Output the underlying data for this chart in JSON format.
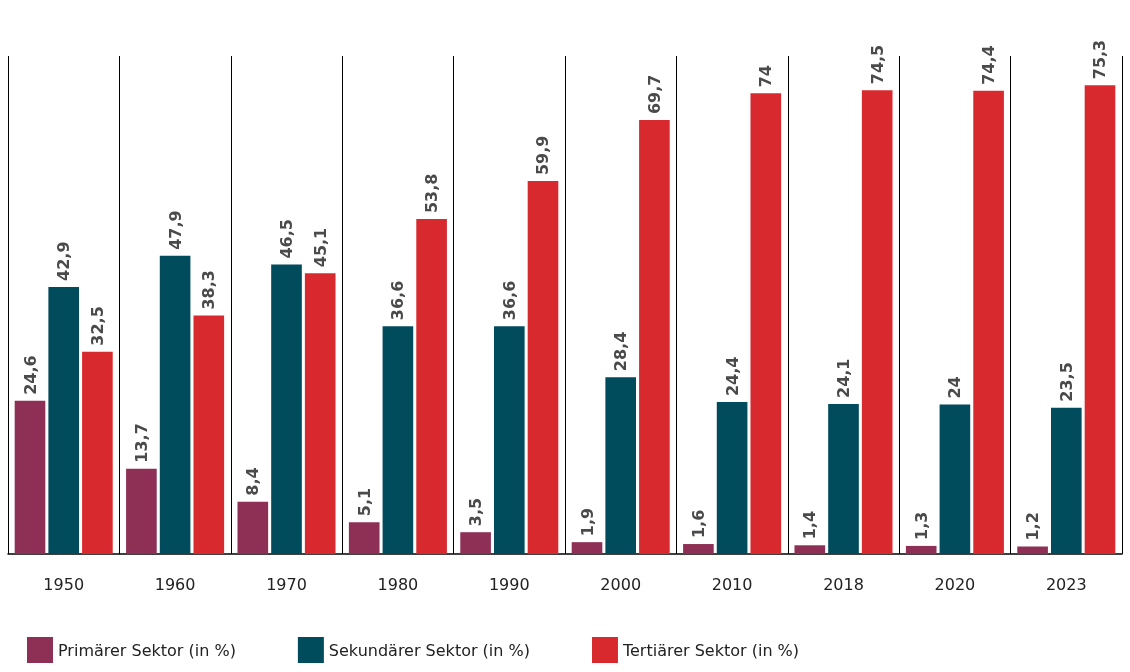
{
  "chart_data": {
    "type": "bar",
    "categories": [
      "1950",
      "1960",
      "1970",
      "1980",
      "1990",
      "2000",
      "2010",
      "2018",
      "2020",
      "2023"
    ],
    "series": [
      {
        "name": "Primärer Sektor (in %)",
        "color": "#8e2f55",
        "values": [
          24.6,
          13.7,
          8.4,
          5.1,
          3.5,
          1.9,
          1.6,
          1.4,
          1.3,
          1.2
        ],
        "value_labels": [
          "24,6",
          "13,7",
          "8,4",
          "5,1",
          "3,5",
          "1,9",
          "1,6",
          "1,4",
          "1,3",
          "1,2"
        ]
      },
      {
        "name": "Sekundärer Sektor (in %)",
        "color": "#004b5c",
        "values": [
          42.9,
          47.9,
          46.5,
          36.6,
          36.6,
          28.4,
          24.4,
          24.1,
          24,
          23.5
        ],
        "value_labels": [
          "42,9",
          "47,9",
          "46,5",
          "36,6",
          "36,6",
          "28,4",
          "24,4",
          "24,1",
          "24",
          "23,5"
        ]
      },
      {
        "name": "Tertiärer Sektor (in %)",
        "color": "#d82a2e",
        "values": [
          32.5,
          38.3,
          45.1,
          53.8,
          59.9,
          69.7,
          74,
          74.5,
          74.4,
          75.3
        ],
        "value_labels": [
          "32,5",
          "38,3",
          "45,1",
          "53,8",
          "59,9",
          "69,7",
          "74",
          "74,5",
          "74,4",
          "75,3"
        ]
      }
    ],
    "grid": "x",
    "legend": "bottom left",
    "tick_labels": "x"
  }
}
